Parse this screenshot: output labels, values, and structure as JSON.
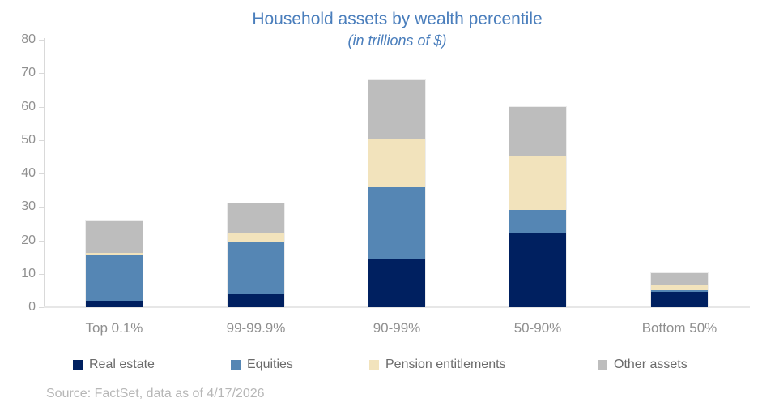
{
  "header": {
    "title": "Household assets by wealth percentile",
    "subtitle": "(in trillions of $)"
  },
  "footer": {
    "source": "Source: FactSet, data as of 4/17/2026"
  },
  "colors": {
    "title_text": "#4a7ebc",
    "axis_text": "#8f8f8f",
    "legend_text": "#6b6b6b",
    "source_text": "#b7b7b7",
    "axis_line": "#d9d9d9",
    "real_estate": "#002060",
    "equities": "#5586b4",
    "pension_entitlements": "#f2e3bc",
    "other_assets": "#bdbdbd"
  },
  "chart_data": {
    "type": "bar",
    "stacked": true,
    "title": "Household assets by wealth percentile",
    "subtitle": "(in trillions of $)",
    "categories": [
      "Top 0.1%",
      "99-99.9%",
      "90-99%",
      "50-90%",
      "Bottom 50%"
    ],
    "series": [
      {
        "name": "Real estate",
        "color": "#002060",
        "values": [
          2,
          4,
          14.5,
          22,
          4.5
        ]
      },
      {
        "name": "Equities",
        "color": "#5586b4",
        "values": [
          13.5,
          15.5,
          21.5,
          7,
          0.7
        ]
      },
      {
        "name": "Pension entitlements",
        "color": "#f2e3bc",
        "values": [
          0.8,
          2.5,
          14.5,
          16,
          1.3
        ]
      },
      {
        "name": "Other assets",
        "color": "#bdbdbd",
        "values": [
          9.4,
          9,
          17.5,
          15,
          3.8
        ]
      }
    ],
    "totals": [
      25.7,
      31,
      68,
      60,
      10.3
    ],
    "ylim": [
      0,
      80
    ],
    "yticks": [
      0,
      10,
      20,
      30,
      40,
      50,
      60,
      70,
      80
    ],
    "grid": false,
    "legend_position": "bottom"
  }
}
